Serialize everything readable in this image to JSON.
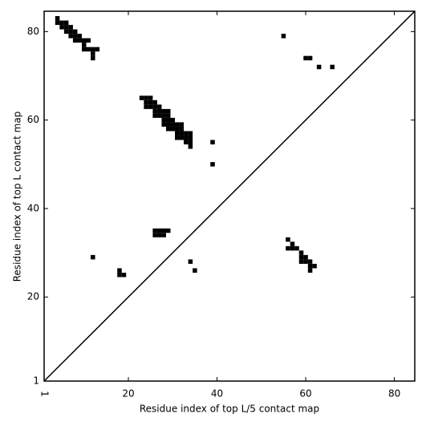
{
  "chart_data": {
    "type": "scatter",
    "marker": "square",
    "diagonal": true,
    "x_label": "Residue index of top L/5 contact map",
    "y_label": "Residue index of top L contact map",
    "xlim": [
      1,
      84.6
    ],
    "ylim": [
      1,
      84.6
    ],
    "xticks": [
      1,
      20,
      40,
      60,
      80
    ],
    "yticks": [
      1,
      20,
      40,
      60,
      80
    ],
    "series": [
      {
        "color": "#000000",
        "x": [
          4,
          4,
          5,
          6,
          5,
          6,
          6,
          7,
          7,
          7,
          8,
          8,
          8,
          9,
          9,
          10,
          11,
          10,
          10,
          11,
          12,
          13,
          12,
          12,
          23,
          24,
          25,
          24,
          25,
          26,
          24,
          25,
          26,
          27,
          26,
          27,
          28,
          29,
          26,
          27,
          28,
          29,
          28,
          29,
          30,
          28,
          29,
          30,
          31,
          32,
          29,
          30,
          31,
          32,
          31,
          32,
          33,
          34,
          31,
          32,
          33,
          34,
          33,
          34,
          34,
          39,
          39,
          55,
          60,
          61,
          63,
          66,
          26,
          27,
          28,
          29,
          26,
          27,
          28,
          12,
          18,
          18,
          19,
          34,
          35,
          56,
          57,
          56,
          57,
          58,
          59,
          59,
          60,
          59,
          60,
          61,
          61,
          62,
          61
        ],
        "y": [
          82,
          83,
          82,
          82,
          81,
          81,
          80,
          81,
          80,
          79,
          80,
          79,
          78,
          79,
          78,
          78,
          78,
          77,
          76,
          76,
          76,
          76,
          75,
          74,
          65,
          65,
          65,
          64,
          64,
          64,
          63,
          63,
          63,
          63,
          62,
          62,
          62,
          62,
          61,
          61,
          61,
          61,
          60,
          60,
          60,
          59,
          59,
          59,
          59,
          59,
          58,
          58,
          58,
          58,
          57,
          57,
          57,
          57,
          56,
          56,
          56,
          56,
          55,
          55,
          54,
          55,
          50,
          79,
          74,
          74,
          72,
          72,
          35,
          35,
          35,
          35,
          34,
          34,
          34,
          29,
          26,
          25,
          25,
          28,
          26,
          33,
          32,
          31,
          31,
          31,
          30,
          29,
          29,
          28,
          28,
          28,
          27,
          27,
          26
        ]
      }
    ]
  }
}
